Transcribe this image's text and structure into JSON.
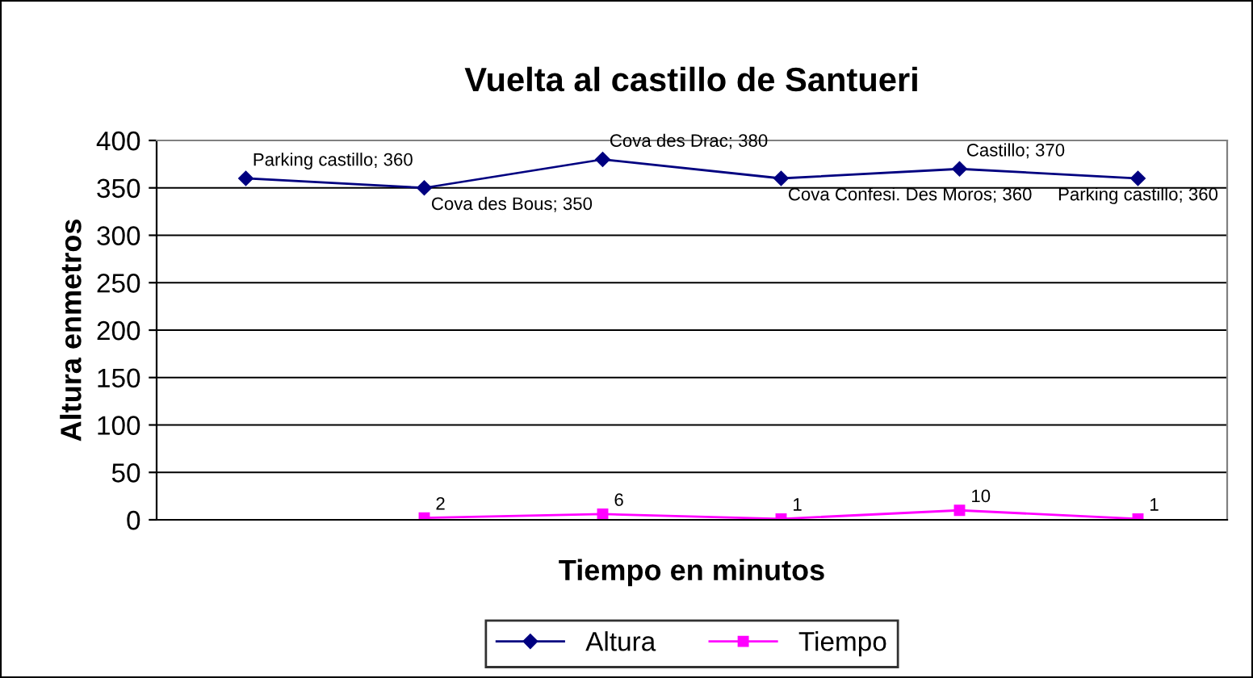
{
  "chart_data": {
    "type": "line",
    "title": "Vuelta al castillo de Santueri",
    "xlabel": "Tiempo en minutos",
    "ylabel": "Altura enmetros",
    "categories": [
      null,
      null,
      null,
      null,
      null,
      null
    ],
    "series": [
      {
        "name": "Altura",
        "color": "#000080",
        "marker": "diamond",
        "values": [
          360,
          350,
          380,
          360,
          370,
          360
        ],
        "value_labels": [
          "Parking castillo; 360",
          "Cova des Bous; 350",
          "Cova des Drac; 380",
          "Cova Confesi. Des Moros; 360",
          "Castillo; 370",
          "Parking castillo; 360"
        ]
      },
      {
        "name": "Tiempo",
        "color": "#ff00ff",
        "marker": "square",
        "values": [
          null,
          2,
          6,
          1,
          10,
          1
        ],
        "value_labels": [
          null,
          "2",
          "6",
          "1",
          "10",
          "1"
        ]
      }
    ],
    "ylim": [
      0,
      400
    ],
    "yticks": [
      0,
      50,
      100,
      150,
      200,
      250,
      300,
      350,
      400
    ],
    "grid": "y",
    "legend": "bottom"
  }
}
